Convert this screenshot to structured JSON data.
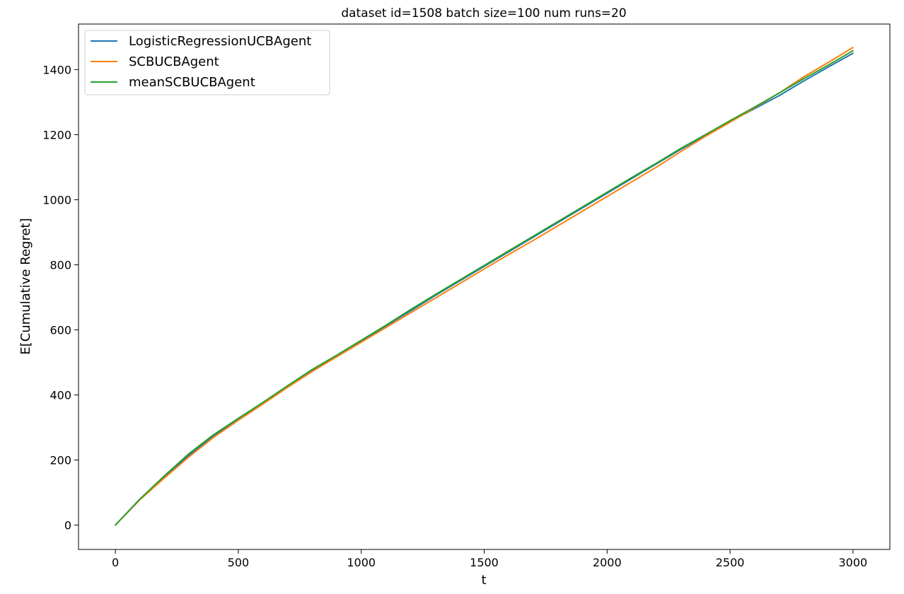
{
  "chart_data": {
    "type": "line",
    "title": "dataset id=1508 batch size=100 num runs=20",
    "xlabel": "t",
    "ylabel": "E[Cumulative Regret]",
    "xlim": [
      -150,
      3150
    ],
    "ylim": [
      -75,
      1540
    ],
    "xticks": [
      0,
      500,
      1000,
      1500,
      2000,
      2500,
      3000
    ],
    "yticks": [
      0,
      200,
      400,
      600,
      800,
      1000,
      1200,
      1400
    ],
    "grid": false,
    "legend_position": "upper left",
    "series": [
      {
        "name": "LogisticRegressionUCBAgent",
        "color": "#1f77b4",
        "x": [
          0,
          100,
          200,
          300,
          400,
          500,
          600,
          700,
          800,
          900,
          1000,
          1100,
          1200,
          1300,
          1400,
          1500,
          1600,
          1700,
          1800,
          1900,
          2000,
          2100,
          2200,
          2300,
          2400,
          2500,
          2600,
          2700,
          2800,
          2900,
          3000
        ],
        "y": [
          0,
          80,
          150,
          215,
          275,
          325,
          375,
          425,
          475,
          520,
          565,
          612,
          658,
          705,
          750,
          795,
          840,
          885,
          930,
          975,
          1020,
          1065,
          1110,
          1155,
          1198,
          1240,
          1280,
          1320,
          1365,
          1408,
          1450
        ]
      },
      {
        "name": "SCBUCBAgent",
        "color": "#ff7f0e",
        "x": [
          0,
          100,
          200,
          300,
          400,
          500,
          600,
          700,
          800,
          900,
          1000,
          1100,
          1200,
          1300,
          1400,
          1500,
          1600,
          1700,
          1800,
          1900,
          2000,
          2100,
          2200,
          2300,
          2400,
          2500,
          2600,
          2700,
          2800,
          2900,
          3000
        ],
        "y": [
          0,
          78,
          145,
          210,
          270,
          322,
          372,
          423,
          472,
          517,
          562,
          607,
          652,
          697,
          742,
          787,
          832,
          875,
          920,
          965,
          1010,
          1055,
          1100,
          1148,
          1195,
          1238,
          1283,
          1328,
          1378,
          1422,
          1468
        ]
      },
      {
        "name": "meanSCBUCBAgent",
        "color": "#2ca02c",
        "x": [
          0,
          100,
          200,
          300,
          400,
          500,
          600,
          700,
          800,
          900,
          1000,
          1100,
          1200,
          1300,
          1400,
          1500,
          1600,
          1700,
          1800,
          1900,
          2000,
          2100,
          2200,
          2300,
          2400,
          2500,
          2600,
          2700,
          2800,
          2900,
          3000
        ],
        "y": [
          0,
          80,
          152,
          220,
          278,
          328,
          377,
          428,
          478,
          522,
          568,
          614,
          662,
          708,
          753,
          798,
          843,
          888,
          933,
          978,
          1023,
          1068,
          1112,
          1158,
          1200,
          1243,
          1285,
          1328,
          1372,
          1414,
          1458
        ]
      }
    ]
  }
}
